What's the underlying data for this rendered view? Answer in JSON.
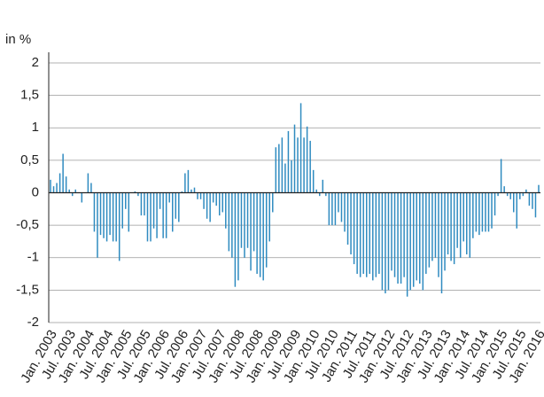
{
  "chart_data": {
    "type": "bar",
    "y_axis_label": "in %",
    "categories": [
      "Jan. 2003",
      null,
      null,
      null,
      null,
      null,
      "Jul. 2003",
      null,
      null,
      null,
      null,
      null,
      "Jan. 2004",
      null,
      null,
      null,
      null,
      null,
      "Jul. 2004",
      null,
      null,
      null,
      null,
      null,
      "Jan. 2005",
      null,
      null,
      null,
      null,
      null,
      "Jul. 2005",
      null,
      null,
      null,
      null,
      null,
      "Jan. 2006",
      null,
      null,
      null,
      null,
      null,
      "Jul. 2006",
      null,
      null,
      null,
      null,
      null,
      "Jan. 2007",
      null,
      null,
      null,
      null,
      null,
      "Jul. 2007",
      null,
      null,
      null,
      null,
      null,
      "Jan. 2008",
      null,
      null,
      null,
      null,
      null,
      "Jul. 2008",
      null,
      null,
      null,
      null,
      null,
      "Jan. 2009",
      null,
      null,
      null,
      null,
      null,
      "Jul. 2009",
      null,
      null,
      null,
      null,
      null,
      "Jan. 2010",
      null,
      null,
      null,
      null,
      null,
      "Jul. 2010",
      null,
      null,
      null,
      null,
      null,
      "Jan. 2011",
      null,
      null,
      null,
      null,
      null,
      "Jul. 2011",
      null,
      null,
      null,
      null,
      null,
      "Jan. 2012",
      null,
      null,
      null,
      null,
      null,
      "Jul. 2012",
      null,
      null,
      null,
      null,
      null,
      "Jan. 2013",
      null,
      null,
      null,
      null,
      null,
      "Jul. 2013",
      null,
      null,
      null,
      null,
      null,
      "Jan. 2014",
      null,
      null,
      null,
      null,
      null,
      "Jul. 2014",
      null,
      null,
      null,
      null,
      null,
      "Jan. 2015",
      null,
      null,
      null,
      null,
      null,
      "Jul. 2015",
      null,
      null,
      null,
      null,
      null,
      "Jan. 2016"
    ],
    "values": [
      0.2,
      0.1,
      0.15,
      0.3,
      0.6,
      0.25,
      0.05,
      -0.05,
      0.05,
      0,
      -0.15,
      0,
      0.3,
      0.15,
      -0.6,
      -1.0,
      -0.65,
      -0.7,
      -0.75,
      -0.65,
      -0.75,
      -0.75,
      -1.05,
      -0.55,
      -0.25,
      -0.6,
      0,
      0.02,
      -0.05,
      -0.35,
      -0.35,
      -0.75,
      -0.75,
      -0.55,
      -0.7,
      -0.25,
      -0.7,
      -0.7,
      -0.15,
      -0.6,
      -0.4,
      -0.45,
      0.02,
      0.3,
      0.35,
      0.05,
      0.08,
      -0.1,
      -0.1,
      -0.25,
      -0.4,
      -0.45,
      -0.15,
      -0.2,
      -0.35,
      -0.3,
      -0.55,
      -0.9,
      -1.0,
      -1.45,
      -1.35,
      -0.85,
      -1.0,
      -0.85,
      -1.2,
      -0.9,
      -1.25,
      -1.3,
      -1.35,
      -1.15,
      -0.75,
      -0.3,
      0.7,
      0.75,
      0.85,
      0.45,
      0.95,
      0.5,
      1.05,
      0.85,
      1.38,
      0.85,
      1.02,
      0.8,
      0.35,
      0.05,
      -0.05,
      0.2,
      -0.05,
      -0.5,
      -0.5,
      -0.5,
      -0.3,
      -0.45,
      -0.6,
      -0.8,
      -0.95,
      -1.1,
      -1.25,
      -1.3,
      -1.25,
      -1.3,
      -1.25,
      -1.35,
      -1.3,
      -1.25,
      -1.5,
      -1.55,
      -1.5,
      -1.2,
      -1.3,
      -1.4,
      -1.4,
      -1.3,
      -1.6,
      -1.5,
      -1.45,
      -1.35,
      -1.4,
      -1.5,
      -1.25,
      -1.15,
      -1.05,
      -1.0,
      -1.3,
      -1.55,
      -1.2,
      -0.95,
      -1.05,
      -1.1,
      -0.85,
      -1.0,
      -0.75,
      -0.95,
      -1.0,
      -0.7,
      -0.6,
      -0.65,
      -0.6,
      -0.6,
      -0.6,
      -0.55,
      -0.35,
      -0.05,
      0.52,
      0.1,
      -0.05,
      -0.1,
      -0.3,
      -0.55,
      -0.1,
      -0.05,
      0.05,
      -0.2,
      -0.25,
      -0.38,
      0.12
    ],
    "color": "#2f8bc0",
    "ylim": [
      -2,
      2
    ],
    "yticks": [
      {
        "value": -2,
        "label": "-2"
      },
      {
        "value": -1.5,
        "label": "-1,5"
      },
      {
        "value": -1,
        "label": "-1"
      },
      {
        "value": -0.5,
        "label": "-0,5"
      },
      0,
      {
        "value": 0.5,
        "label": "0,5"
      },
      1,
      {
        "value": 1.5,
        "label": "1,5"
      },
      2
    ],
    "grid": true
  }
}
